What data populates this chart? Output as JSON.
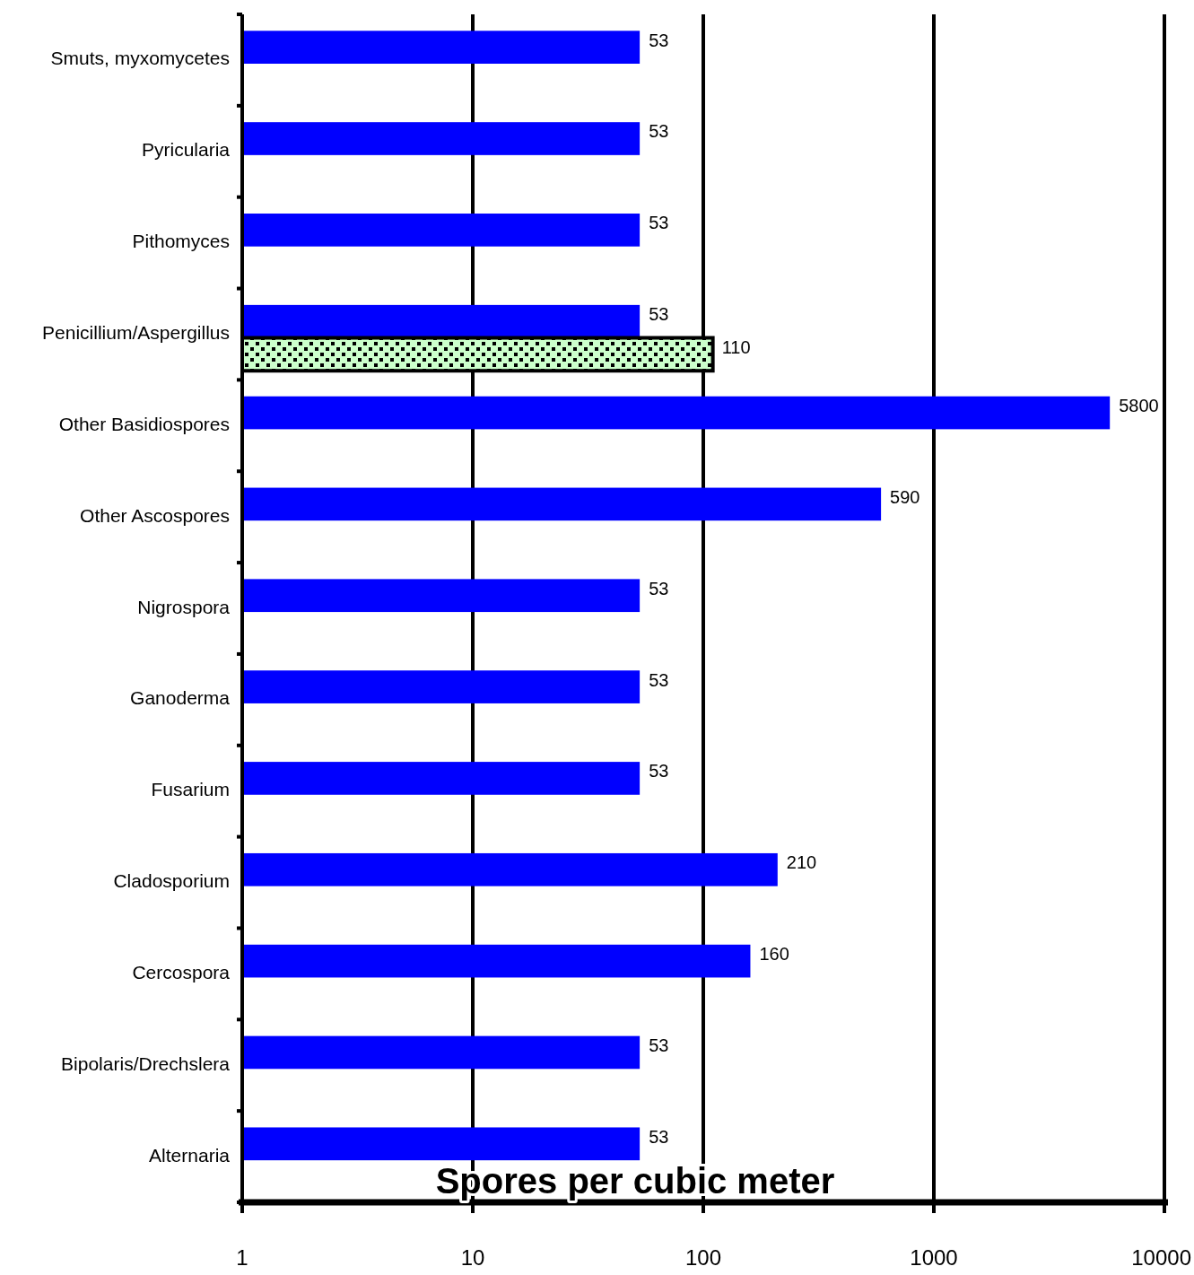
{
  "chart_data": {
    "type": "bar",
    "orientation": "horizontal",
    "xlabel": "Spores per cubic meter",
    "categories": [
      "Smuts, myxomycetes",
      "Pyricularia",
      "Pithomyces",
      "Penicillium/Aspergillus",
      "Other Basidiospores",
      "Other Ascospores",
      "Nigrospora",
      "Ganoderma",
      "Fusarium",
      "Cladosporium",
      "Cercospora",
      "Bipolaris/Drechslera",
      "Alternaria"
    ],
    "series": [
      {
        "color": "#0000ff",
        "values": [
          53,
          53,
          53,
          53,
          5800,
          590,
          53,
          53,
          53,
          210,
          160,
          53,
          53
        ]
      },
      {
        "color": "#ccffcc",
        "values": [
          null,
          null,
          null,
          110,
          null,
          null,
          null,
          null,
          null,
          null,
          null,
          null,
          null
        ]
      }
    ],
    "log": "x",
    "xlim": [
      1,
      10000
    ],
    "xticks": [
      1,
      10,
      100,
      1000,
      10000
    ],
    "grid": "x",
    "data_labels": true
  }
}
